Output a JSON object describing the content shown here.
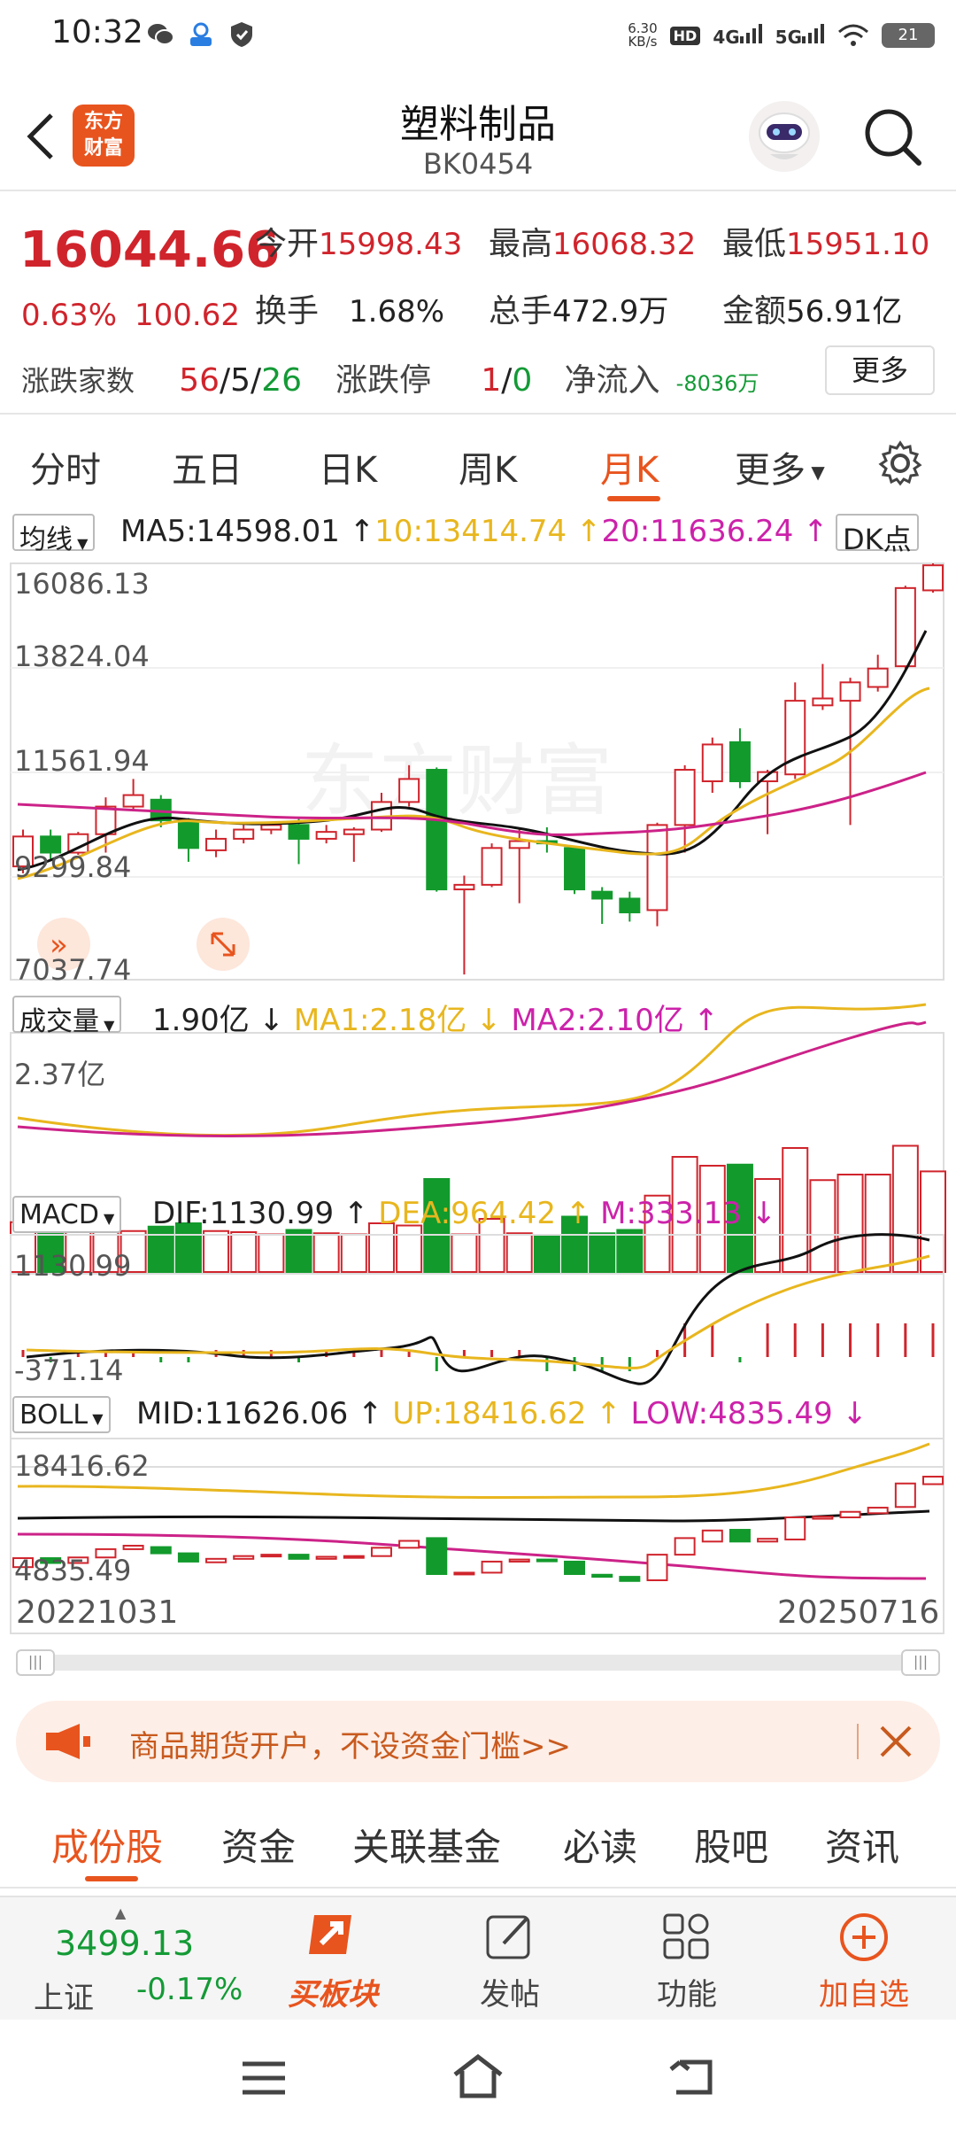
{
  "status_bar": {
    "time": "10:32",
    "net_speed_top": "6.30",
    "net_speed_unit": "KB/s",
    "hd_badge": "HD",
    "sim1_label": "4G",
    "sim2_label": "5G",
    "battery": "21"
  },
  "header": {
    "brand_line1": "东方",
    "brand_line2": "财富",
    "title": "塑料制品",
    "code": "BK0454"
  },
  "quote": {
    "price": "16044.66",
    "change_pct": "0.63%",
    "change_val": "100.62",
    "open_label": "今开",
    "open": "15998.43",
    "high_label": "最高",
    "high": "16068.32",
    "low_label": "最低",
    "low": "15951.10",
    "turnover_label": "换手",
    "turnover": "1.68%",
    "volume_label": "总手",
    "volume": "472.9万",
    "amount_label": "金额",
    "amount": "56.91亿",
    "breadth_label": "涨跌家数",
    "breadth_up": "56",
    "breadth_sep1": "/",
    "breadth_flat": "5",
    "breadth_sep2": "/",
    "breadth_down": "26",
    "limit_label": "涨跌停",
    "limit_up": "1",
    "limit_sep": "/",
    "limit_down": "0",
    "netflow_label": "净流入",
    "netflow": "-8036万",
    "more_label": "更多"
  },
  "chart_tabs": [
    {
      "label": "分时"
    },
    {
      "label": "五日"
    },
    {
      "label": "日K"
    },
    {
      "label": "周K"
    },
    {
      "label": "月K"
    },
    {
      "label": "更多"
    }
  ],
  "indicators": {
    "ma": {
      "selector": "均线",
      "ma5": "MA5:14598.01",
      "ma10": "10:13414.74",
      "ma20": "20:11636.24",
      "dk_button": "DK点",
      "y_labels": [
        "16086.13",
        "13824.04",
        "11561.94",
        "9299.84",
        "7037.74"
      ]
    },
    "vol": {
      "selector": "成交量",
      "val": "1.90亿",
      "ma1": "MA1:2.18亿",
      "ma2": "MA2:2.10亿",
      "y_top": "2.37亿"
    },
    "macd": {
      "selector": "MACD",
      "dif": "DIF:1130.99",
      "dea": "DEA:964.42",
      "m": "M:333.13",
      "y_top": "1130.99",
      "y_bottom": "-371.14"
    },
    "boll": {
      "selector": "BOLL",
      "mid": "MID:11626.06",
      "up": "UP:18416.62",
      "low": "LOW:4835.49",
      "y_top": "18416.62",
      "y_bottom": "4835.49"
    }
  },
  "chart_data": {
    "type": "candlestick",
    "x_range": [
      "20221031",
      "20250716"
    ],
    "y_range": [
      7037.74,
      16086.13
    ],
    "candles": [
      {
        "o": 9500,
        "c": 10150,
        "h": 10300,
        "l": 9350
      },
      {
        "o": 10150,
        "c": 9800,
        "h": 10300,
        "l": 9650
      },
      {
        "o": 9800,
        "c": 10200,
        "h": 10250,
        "l": 9750
      },
      {
        "o": 10200,
        "c": 10800,
        "h": 11000,
        "l": 9800
      },
      {
        "o": 10800,
        "c": 11050,
        "h": 11400,
        "l": 10700
      },
      {
        "o": 10950,
        "c": 10500,
        "h": 11050,
        "l": 10350
      },
      {
        "o": 10500,
        "c": 9900,
        "h": 10550,
        "l": 9600
      },
      {
        "o": 9850,
        "c": 10100,
        "h": 10300,
        "l": 9700
      },
      {
        "o": 10100,
        "c": 10300,
        "h": 10400,
        "l": 10000
      },
      {
        "o": 10300,
        "c": 10400,
        "h": 10450,
        "l": 10200
      },
      {
        "o": 10400,
        "c": 10100,
        "h": 10550,
        "l": 9550
      },
      {
        "o": 10100,
        "c": 10250,
        "h": 10400,
        "l": 10000
      },
      {
        "o": 10200,
        "c": 10300,
        "h": 10350,
        "l": 9600
      },
      {
        "o": 10300,
        "c": 10900,
        "h": 11100,
        "l": 10250
      },
      {
        "o": 10900,
        "c": 11400,
        "h": 11700,
        "l": 10800
      },
      {
        "o": 11600,
        "c": 9000,
        "h": 11650,
        "l": 8950
      },
      {
        "o": 9000,
        "c": 9100,
        "h": 9300,
        "l": 7150
      },
      {
        "o": 9100,
        "c": 9900,
        "h": 10000,
        "l": 9050
      },
      {
        "o": 9900,
        "c": 10050,
        "h": 10300,
        "l": 8700
      },
      {
        "o": 10050,
        "c": 10000,
        "h": 10350,
        "l": 9800
      },
      {
        "o": 9900,
        "c": 9000,
        "h": 9950,
        "l": 8900
      },
      {
        "o": 8950,
        "c": 8800,
        "h": 9050,
        "l": 8250
      },
      {
        "o": 8800,
        "c": 8500,
        "h": 8950,
        "l": 8300
      },
      {
        "o": 8550,
        "c": 10400,
        "h": 10450,
        "l": 8200
      },
      {
        "o": 10400,
        "c": 11600,
        "h": 11700,
        "l": 9800
      },
      {
        "o": 11350,
        "c": 12150,
        "h": 12300,
        "l": 11100
      },
      {
        "o": 12200,
        "c": 11350,
        "h": 12500,
        "l": 11200
      },
      {
        "o": 11350,
        "c": 11550,
        "h": 11600,
        "l": 10200
      },
      {
        "o": 11500,
        "c": 13100,
        "h": 13500,
        "l": 11400
      },
      {
        "o": 13000,
        "c": 13150,
        "h": 13900,
        "l": 12900
      },
      {
        "o": 13100,
        "c": 13500,
        "h": 13600,
        "l": 10400
      },
      {
        "o": 13400,
        "c": 13800,
        "h": 14100,
        "l": 13300
      },
      {
        "o": 13850,
        "c": 15550,
        "h": 15600,
        "l": 13800
      },
      {
        "o": 15500,
        "c": 16044,
        "h": 16086,
        "l": 15450
      }
    ]
  },
  "date_start": "20221031",
  "date_end": "20250716",
  "slider": {
    "left_handle": "|||",
    "right_handle": "|||"
  },
  "ad": {
    "text": "商品期货开户，不设资金门槛>>"
  },
  "content_tabs": [
    {
      "label": "成份股"
    },
    {
      "label": "资金"
    },
    {
      "label": "关联基金"
    },
    {
      "label": "必读"
    },
    {
      "label": "股吧"
    },
    {
      "label": "资讯"
    }
  ],
  "toolbar": {
    "index_value": "3499.13",
    "index_name": "上证",
    "index_change": "-0.17%",
    "buy_label": "买板块",
    "post_label": "发帖",
    "func_label": "功能",
    "add_label": "加自选"
  }
}
